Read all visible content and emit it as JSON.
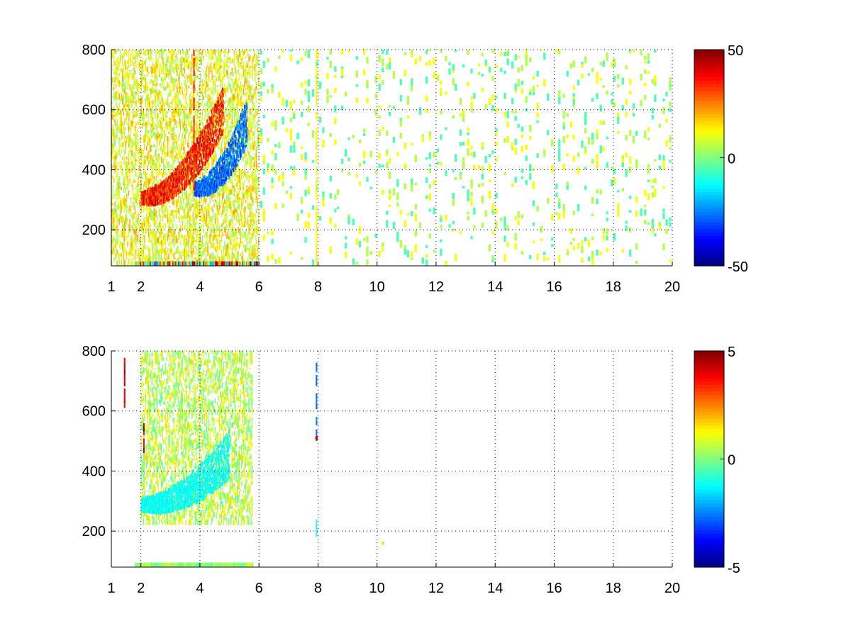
{
  "figure": {
    "background": "#ffffff",
    "colormap": "jet"
  },
  "chart_data": [
    {
      "type": "heatmap",
      "title": "",
      "xlabel": "",
      "ylabel": "",
      "xlim": [
        1,
        20
      ],
      "ylim": [
        80,
        800
      ],
      "x_scale": "linear",
      "grid": true,
      "x_ticks": [
        1,
        2,
        4,
        6,
        8,
        10,
        12,
        14,
        16,
        18,
        20
      ],
      "x_tick_labels": [
        "1",
        "2",
        "4",
        "6",
        "8",
        "10",
        "12",
        "14",
        "16",
        "18",
        "20"
      ],
      "y_ticks": [
        200,
        400,
        600,
        800
      ],
      "y_tick_labels": [
        "200",
        "400",
        "600",
        "800"
      ],
      "colorbar": {
        "clim": [
          -50,
          50
        ],
        "ticks": [
          -50,
          0,
          50
        ],
        "tick_labels": [
          "-50",
          "0",
          "50"
        ],
        "placement": "right"
      },
      "features": [
        {
          "kind": "dense-region",
          "x_range": [
            1.0,
            6.0
          ],
          "y_range": [
            80,
            800
          ],
          "typical_value": 10
        },
        {
          "kind": "curved-band",
          "x_range": [
            2.0,
            4.8
          ],
          "y_center_start": 300,
          "y_center_end": 600,
          "peak_value": 45
        },
        {
          "kind": "curved-band",
          "x_range": [
            3.8,
            5.6
          ],
          "y_center_start": 330,
          "y_center_end": 560,
          "peak_value": -35
        },
        {
          "kind": "vertical-line",
          "x": 3.8,
          "y_range": [
            330,
            800
          ],
          "value": 40
        },
        {
          "kind": "vertical-line",
          "x": 7.95,
          "y_range": [
            80,
            800
          ],
          "value": 15
        },
        {
          "kind": "bottom-strip",
          "x_range": [
            1.8,
            6.0
          ],
          "y_range": [
            80,
            95
          ],
          "peak_value": 45
        },
        {
          "kind": "sparse-scatter",
          "x_range": [
            6.0,
            20.0
          ],
          "y_range": [
            80,
            800
          ],
          "values": [
            -5,
            5,
            12
          ]
        }
      ]
    },
    {
      "type": "heatmap",
      "title": "",
      "xlabel": "",
      "ylabel": "",
      "xlim": [
        1,
        20
      ],
      "ylim": [
        80,
        800
      ],
      "x_scale": "linear",
      "grid": true,
      "x_ticks": [
        1,
        2,
        4,
        6,
        8,
        10,
        12,
        14,
        16,
        18,
        20
      ],
      "x_tick_labels": [
        "1",
        "2",
        "4",
        "6",
        "8",
        "10",
        "12",
        "14",
        "16",
        "18",
        "20"
      ],
      "y_ticks": [
        200,
        400,
        600,
        800
      ],
      "y_tick_labels": [
        "200",
        "400",
        "600",
        "800"
      ],
      "colorbar": {
        "clim": [
          -5,
          5
        ],
        "ticks": [
          -5,
          0,
          5
        ],
        "tick_labels": [
          "-5",
          "0",
          "5"
        ],
        "placement": "right"
      },
      "features": [
        {
          "kind": "dense-region",
          "x_range": [
            2.0,
            5.8
          ],
          "y_range": [
            220,
            800
          ],
          "typical_value": 0.5
        },
        {
          "kind": "curved-band",
          "x_range": [
            2.0,
            5.0
          ],
          "y_center_start": 280,
          "y_center_end": 450,
          "peak_value": -1.5
        },
        {
          "kind": "bottom-strip",
          "x_range": [
            1.8,
            5.8
          ],
          "y_range": [
            80,
            95
          ],
          "peak_value": 0.8
        },
        {
          "kind": "vertical-line",
          "x": 1.45,
          "y_range": [
            610,
            770
          ],
          "value": 5
        },
        {
          "kind": "vertical-line",
          "x": 2.1,
          "y_range": [
            460,
            560
          ],
          "value": 5
        },
        {
          "kind": "vertical-line",
          "x": 7.95,
          "y_range": [
            500,
            760
          ],
          "value": -3
        },
        {
          "kind": "vertical-line",
          "x": 7.95,
          "y_range": [
            180,
            230
          ],
          "value": -1
        },
        {
          "kind": "point",
          "x": 7.95,
          "y": 510,
          "value": 4
        },
        {
          "kind": "point",
          "x": 10.2,
          "y": 160,
          "value": 1.5
        }
      ]
    }
  ]
}
